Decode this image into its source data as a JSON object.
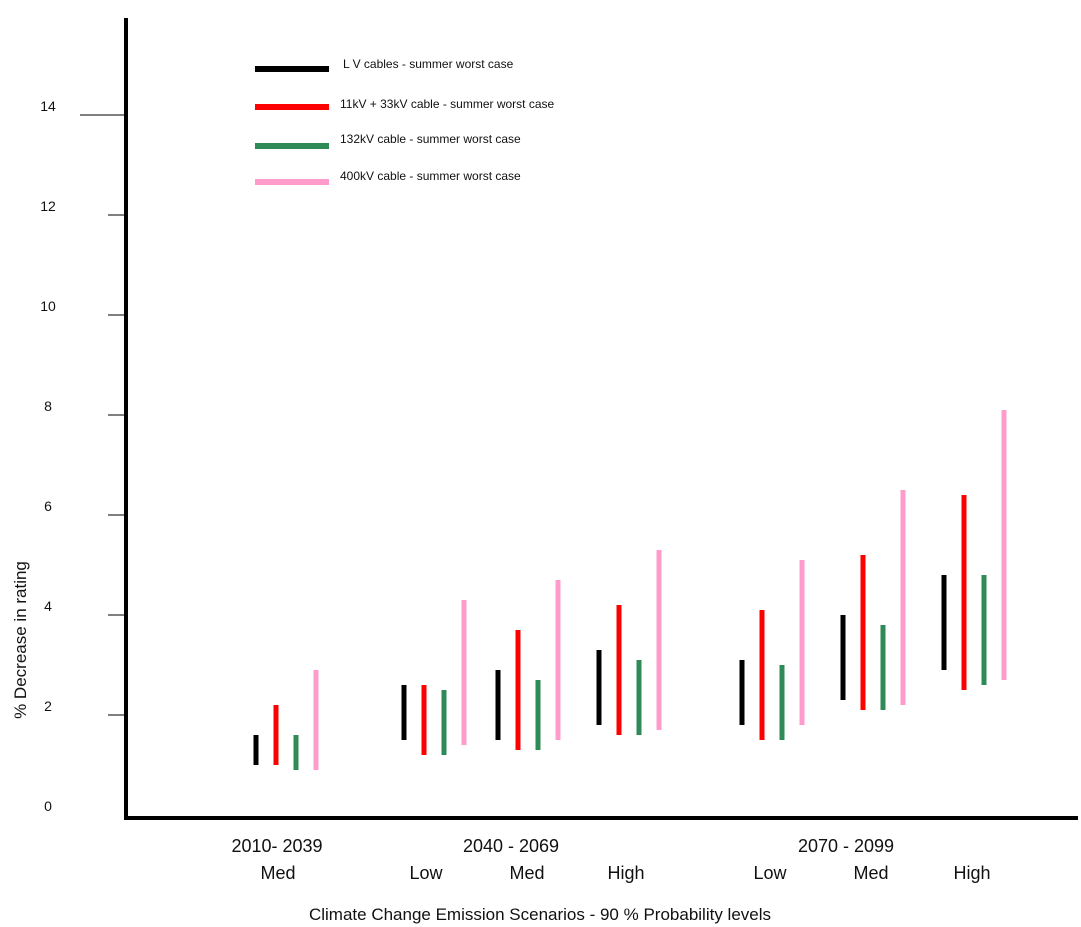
{
  "chart_data": {
    "type": "range-bar",
    "xlabel": "Climate Change Emission Scenarios - 90 % Probability levels",
    "ylabel": "%   Decrease in rating",
    "ylim": [
      0,
      15
    ],
    "yticks": [
      0,
      2,
      4,
      6,
      8,
      10,
      12,
      14
    ],
    "periods": [
      "2010- 2039",
      "2040 - 2069",
      "2070 - 2099"
    ],
    "groups": [
      {
        "period": "2010- 2039",
        "scenario": "Med"
      },
      {
        "period": "2040 - 2069",
        "scenario": "Low"
      },
      {
        "period": "2040 - 2069",
        "scenario": "Med"
      },
      {
        "period": "2040 - 2069",
        "scenario": "High"
      },
      {
        "period": "2070 - 2099",
        "scenario": "Low"
      },
      {
        "period": "2070 - 2099",
        "scenario": "Med"
      },
      {
        "period": "2070 - 2099",
        "scenario": "High"
      }
    ],
    "series": [
      {
        "name": "L V cables - summer worst case",
        "color": "#000000",
        "ranges": [
          [
            1.0,
            1.6
          ],
          [
            1.5,
            2.6
          ],
          [
            1.5,
            2.9
          ],
          [
            1.8,
            3.3
          ],
          [
            1.8,
            3.1
          ],
          [
            2.3,
            4.0
          ],
          [
            2.9,
            4.8
          ]
        ]
      },
      {
        "name": "11kV + 33kV cable - summer worst case",
        "color": "#ff0000",
        "ranges": [
          [
            1.0,
            2.2
          ],
          [
            1.2,
            2.6
          ],
          [
            1.3,
            3.7
          ],
          [
            1.6,
            4.2
          ],
          [
            1.5,
            4.1
          ],
          [
            2.1,
            5.2
          ],
          [
            2.5,
            6.4
          ]
        ]
      },
      {
        "name": "132kV cable - summer worst case",
        "color": "#2e8b57",
        "ranges": [
          [
            0.9,
            1.6
          ],
          [
            1.2,
            2.5
          ],
          [
            1.3,
            2.7
          ],
          [
            1.6,
            3.1
          ],
          [
            1.5,
            3.0
          ],
          [
            2.1,
            3.8
          ],
          [
            2.6,
            4.8
          ]
        ]
      },
      {
        "name": "400kV cable - summer worst case",
        "color": "#ff9ccc",
        "ranges": [
          [
            0.9,
            2.9
          ],
          [
            1.4,
            4.3
          ],
          [
            1.5,
            4.7
          ],
          [
            1.7,
            5.3
          ],
          [
            1.8,
            5.1
          ],
          [
            2.2,
            6.5
          ],
          [
            2.7,
            8.1
          ]
        ]
      }
    ],
    "legend_position": "top-left",
    "grid": false
  }
}
